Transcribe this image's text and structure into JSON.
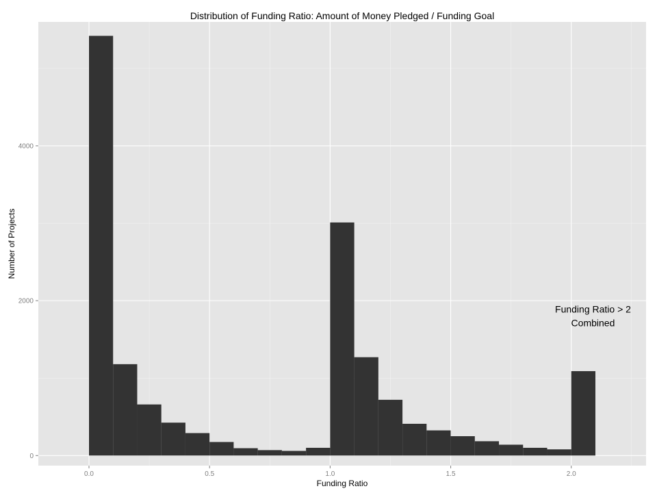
{
  "chart_data": {
    "type": "bar",
    "title": "Distribution of Funding Ratio: Amount of Money Pledged / Funding Goal",
    "xlabel": "Funding Ratio",
    "ylabel": "Number of Projects",
    "xlim": [
      -0.21,
      2.31
    ],
    "ylim": [
      -130,
      5600
    ],
    "x_ticks": [
      "0.0",
      "0.5",
      "1.0",
      "1.5",
      "2.0"
    ],
    "x_tick_values": [
      0.0,
      0.5,
      1.0,
      1.5,
      2.0
    ],
    "y_ticks": [
      "0",
      "2000",
      "4000"
    ],
    "y_tick_values": [
      0,
      2000,
      4000
    ],
    "bin_width": 0.1,
    "bin_starts": [
      0.0,
      0.1,
      0.2,
      0.3,
      0.4,
      0.5,
      0.6,
      0.7,
      0.8,
      0.9,
      1.0,
      1.1,
      1.2,
      1.3,
      1.4,
      1.5,
      1.6,
      1.7,
      1.8,
      1.9,
      2.0
    ],
    "values": [
      5420,
      1180,
      660,
      425,
      290,
      175,
      95,
      70,
      60,
      100,
      3010,
      1270,
      720,
      410,
      325,
      250,
      185,
      140,
      100,
      80,
      1090
    ],
    "grid": true,
    "annotation": {
      "line1": "Funding Ratio > 2",
      "line2": "Combined",
      "x": 2.09,
      "y": 1820
    },
    "colors": {
      "panel": "#e5e5e5",
      "grid": "#ffffff",
      "bar": "#333333"
    }
  }
}
